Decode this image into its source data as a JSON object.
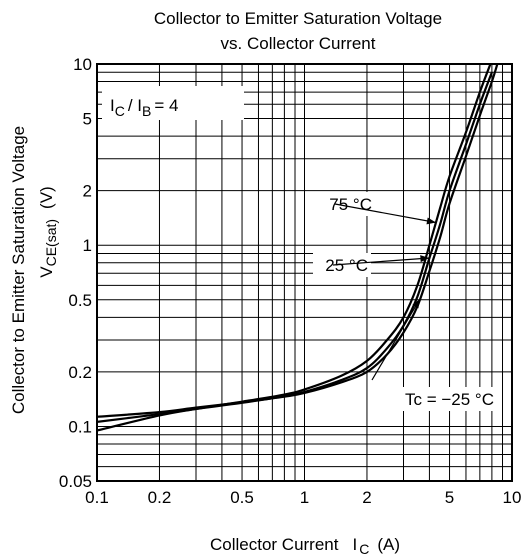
{
  "chart_data": {
    "type": "line",
    "title": "Collector to Emitter Saturation Voltage",
    "subtitle": "vs. Collector Current",
    "ylabel": "Collector to Emitter Saturation Voltage",
    "ysymbol": {
      "main": "V",
      "sub": "CE(sat)",
      "unit": "(V)"
    },
    "xlabel": {
      "text": "Collector Current",
      "symbol": "I",
      "symbol_sub": "C",
      "unit": "(A)"
    },
    "xscale": "log",
    "yscale": "log",
    "xlim": [
      0.1,
      10
    ],
    "ylim": [
      0.05,
      10
    ],
    "xticks": [
      {
        "value": 0.1,
        "label": "0.1"
      },
      {
        "value": 0.2,
        "label": "0.2"
      },
      {
        "value": 0.5,
        "label": "0.5"
      },
      {
        "value": 1,
        "label": "1"
      },
      {
        "value": 2,
        "label": "2"
      },
      {
        "value": 5,
        "label": "5"
      },
      {
        "value": 10,
        "label": "10"
      }
    ],
    "yticks": [
      {
        "value": 0.05,
        "label": "0.05"
      },
      {
        "value": 0.1,
        "label": "0.1"
      },
      {
        "value": 0.2,
        "label": "0.2"
      },
      {
        "value": 0.5,
        "label": "0.5"
      },
      {
        "value": 1,
        "label": "1"
      },
      {
        "value": 2,
        "label": "2"
      },
      {
        "value": 5,
        "label": "5"
      },
      {
        "value": 10,
        "label": "10"
      }
    ],
    "grid": true,
    "condition": {
      "i1": "I",
      "s1": "C",
      "mid": "/ I",
      "s2": "B",
      "tail": "= 4"
    },
    "series": [
      {
        "name": "75 °C",
        "x": [
          0.1,
          0.2,
          0.3,
          0.5,
          0.8,
          1,
          1.5,
          2,
          2.5,
          3,
          3.5,
          4,
          4.5,
          5,
          6,
          7,
          8
        ],
        "y": [
          0.095,
          0.115,
          0.125,
          0.137,
          0.15,
          0.16,
          0.19,
          0.23,
          0.3,
          0.4,
          0.6,
          1.0,
          1.6,
          2.4,
          4.2,
          7.0,
          10.5
        ]
      },
      {
        "name": "25 °C",
        "x": [
          0.1,
          0.2,
          0.3,
          0.5,
          0.8,
          1,
          1.5,
          2,
          2.5,
          3,
          3.5,
          4,
          4.5,
          5,
          6,
          7,
          8
        ],
        "y": [
          0.106,
          0.117,
          0.125,
          0.135,
          0.147,
          0.155,
          0.18,
          0.21,
          0.27,
          0.36,
          0.52,
          0.85,
          1.3,
          2.0,
          3.6,
          6.0,
          9.0
        ]
      },
      {
        "name": "Tc = −25 °C",
        "x": [
          0.1,
          0.2,
          0.3,
          0.5,
          0.8,
          1,
          1.5,
          2,
          2.5,
          3,
          3.5,
          4,
          4.5,
          5,
          6,
          7,
          8,
          8.5
        ],
        "y": [
          0.113,
          0.12,
          0.127,
          0.136,
          0.146,
          0.153,
          0.175,
          0.2,
          0.25,
          0.33,
          0.46,
          0.72,
          1.1,
          1.7,
          3.1,
          5.2,
          8.0,
          10.0
        ]
      }
    ],
    "annotations": [
      {
        "text": "75 °C",
        "series": 0,
        "point_x": 4.3
      },
      {
        "text": "25 °C",
        "series": 1,
        "point_x": 4.0
      },
      {
        "text": "Tc = −25 °C",
        "series": 2,
        "point_x": 3.6
      }
    ]
  }
}
